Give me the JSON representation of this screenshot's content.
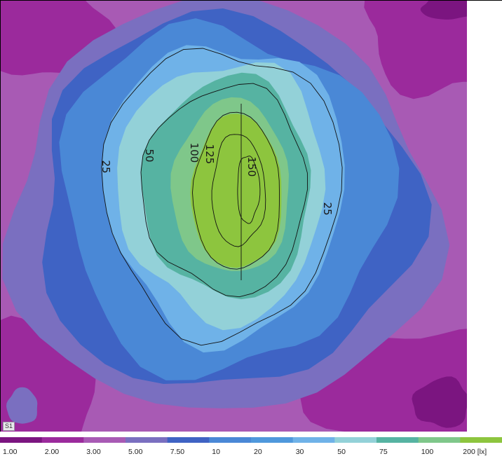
{
  "chart_data": {
    "type": "heatmap",
    "title": "",
    "xlabel": "",
    "ylabel": "",
    "surface_label": "S1",
    "unit": "[lx]",
    "legend": {
      "placement": "bottom",
      "levels": [
        "1.00",
        "2.00",
        "3.00",
        "5.00",
        "7.50",
        "10",
        "20",
        "30",
        "50",
        "75",
        "100",
        "200 [lx]"
      ],
      "level_values": [
        1,
        2,
        3,
        5,
        7.5,
        10,
        20,
        30,
        50,
        75,
        100,
        200
      ],
      "colors": [
        "#7b1580",
        "#9b2a9c",
        "#a85ab4",
        "#7a6fc0",
        "#3f63c4",
        "#4a88d6",
        "#4f98dc",
        "#6fb2e8",
        "#93d1d8",
        "#56b3a2",
        "#7fc78a",
        "#8dc53e"
      ]
    },
    "isolines": [
      {
        "value": 25,
        "label": "25"
      },
      {
        "value": 50,
        "label": "50"
      },
      {
        "value": 100,
        "label": "100"
      },
      {
        "value": 125,
        "label": "125"
      },
      {
        "value": 150,
        "label": "150"
      }
    ],
    "peak_level": "150",
    "min_level": "1.00",
    "grid": false
  }
}
